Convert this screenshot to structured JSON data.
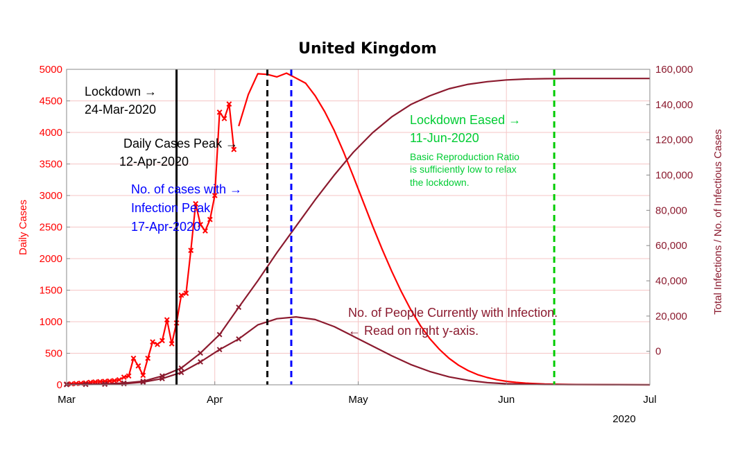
{
  "chart_data": {
    "type": "line",
    "title": "United Kingdom",
    "xlabel": "",
    "year_label": "2020",
    "x_ticks": [
      "Mar",
      "Apr",
      "May",
      "Jun",
      "Jul"
    ],
    "x_tick_days": [
      0,
      31,
      61,
      92,
      122
    ],
    "xlim": [
      0,
      122
    ],
    "ylabel_left": "Daily Cases",
    "ylim_left": [
      0,
      5000
    ],
    "y_ticks_left": [
      "0",
      "500",
      "1000",
      "1500",
      "2000",
      "2500",
      "3000",
      "3500",
      "4000",
      "4500",
      "5000"
    ],
    "y_tick_values_left": [
      0,
      500,
      1000,
      1500,
      2000,
      2500,
      3000,
      3500,
      4000,
      4500,
      5000
    ],
    "ylabel_right": "Total Infections / No. of Infectious Cases",
    "ylim_right": [
      -19000,
      160000
    ],
    "y_ticks_right": [
      "0",
      "20,000",
      "40,000",
      "60,000",
      "80,000",
      "100,000",
      "120,000",
      "140,000",
      "160,000"
    ],
    "y_tick_values_right": [
      0,
      20000,
      40000,
      60000,
      80000,
      100000,
      120000,
      140000,
      160000
    ],
    "colors": {
      "daily": "#ff0000",
      "model": "#8b1a2e",
      "lockdown": "#000000",
      "cases_peak": "#000000",
      "infection_peak": "#0000ff",
      "eased": "#00cc00",
      "grid": "#f5c6c6"
    },
    "series": [
      {
        "name": "Daily Cases (reported)",
        "axis": "left",
        "style": "line-x",
        "x": [
          0,
          1,
          2,
          3,
          4,
          5,
          6,
          7,
          8,
          9,
          10,
          11,
          12,
          13,
          14,
          15,
          16,
          17,
          18,
          19,
          20,
          21,
          22,
          23,
          24,
          25,
          26,
          27,
          28,
          29,
          30,
          31,
          32,
          33,
          34,
          35
        ],
        "y": [
          10,
          15,
          20,
          25,
          30,
          40,
          45,
          50,
          55,
          60,
          65,
          80,
          120,
          140,
          420,
          300,
          150,
          420,
          680,
          640,
          700,
          1030,
          650,
          980,
          1420,
          1450,
          2130,
          2870,
          2540,
          2440,
          2620,
          3000,
          4320,
          4220,
          4450,
          3730
        ]
      },
      {
        "name": "Daily Cases (model)",
        "axis": "left",
        "style": "line",
        "x": [
          36,
          38,
          40,
          42,
          44,
          46,
          48,
          50,
          52,
          54,
          56,
          58,
          60,
          62,
          64,
          66,
          68,
          70,
          72,
          74,
          76,
          78,
          80,
          82,
          84,
          86,
          88,
          90,
          92,
          94,
          96,
          100,
          105,
          110,
          115,
          122
        ],
        "y": [
          4100,
          4600,
          4930,
          4920,
          4880,
          4940,
          4860,
          4780,
          4580,
          4330,
          4030,
          3680,
          3300,
          2910,
          2520,
          2150,
          1800,
          1480,
          1190,
          940,
          730,
          560,
          420,
          310,
          225,
          160,
          115,
          80,
          55,
          38,
          26,
          12,
          5,
          2,
          1,
          0
        ]
      },
      {
        "name": "Total Infections",
        "axis": "right",
        "style": "line-x",
        "x": [
          0,
          4,
          8,
          12,
          16,
          20,
          24,
          28,
          32,
          36,
          40,
          44,
          48,
          52,
          56,
          60,
          64,
          68,
          72,
          76,
          80,
          84,
          88,
          92,
          96,
          100,
          105,
          110,
          115,
          122
        ],
        "y": [
          -18800,
          -18700,
          -18500,
          -18000,
          -17000,
          -14000,
          -9500,
          -1000,
          9500,
          25000,
          40000,
          56000,
          71000,
          86000,
          100000,
          113000,
          124000,
          133000,
          140000,
          145000,
          149000,
          151500,
          153000,
          154000,
          154500,
          154700,
          154800,
          154800,
          154800,
          154800
        ]
      },
      {
        "name": "No. of People Currently with Infection",
        "axis": "right",
        "style": "line-x",
        "x": [
          0,
          4,
          8,
          12,
          16,
          20,
          24,
          28,
          32,
          36,
          40,
          44,
          48,
          52,
          56,
          60,
          64,
          68,
          72,
          76,
          80,
          84,
          88,
          92,
          96,
          100,
          105,
          110,
          115,
          122
        ],
        "y": [
          -18900,
          -18800,
          -18700,
          -18400,
          -17500,
          -15500,
          -12000,
          -6000,
          1000,
          7000,
          15000,
          18500,
          19500,
          18000,
          14000,
          8500,
          3000,
          -2500,
          -7500,
          -11500,
          -14500,
          -16500,
          -17800,
          -18400,
          -18700,
          -18800,
          -18900,
          -18900,
          -18950,
          -19000
        ]
      }
    ],
    "vlines": [
      {
        "name": "lockdown",
        "x": 23,
        "style": "solid"
      },
      {
        "name": "cases-peak",
        "x": 42,
        "style": "dashed"
      },
      {
        "name": "infection-peak",
        "x": 47,
        "style": "dashed"
      },
      {
        "name": "eased",
        "x": 102,
        "style": "dashed"
      }
    ],
    "annotations": {
      "lockdown": [
        "Lockdown →",
        "24-Mar-2020"
      ],
      "cases_peak": [
        "Daily Cases Peak →",
        "12-Apr-2020"
      ],
      "infection_peak": [
        "No. of cases with →",
        "Infection Peak",
        "17-Apr-2020"
      ],
      "eased": [
        "Lockdown Eased →",
        "11-Jun-2020"
      ],
      "eased_note": [
        "Basic Reproduction Ratio",
        "is sufficiently low to relax",
        "the lockdown."
      ],
      "current_infection": [
        "No. of People Currently with Infection.",
        "← Read on right y-axis."
      ]
    }
  }
}
